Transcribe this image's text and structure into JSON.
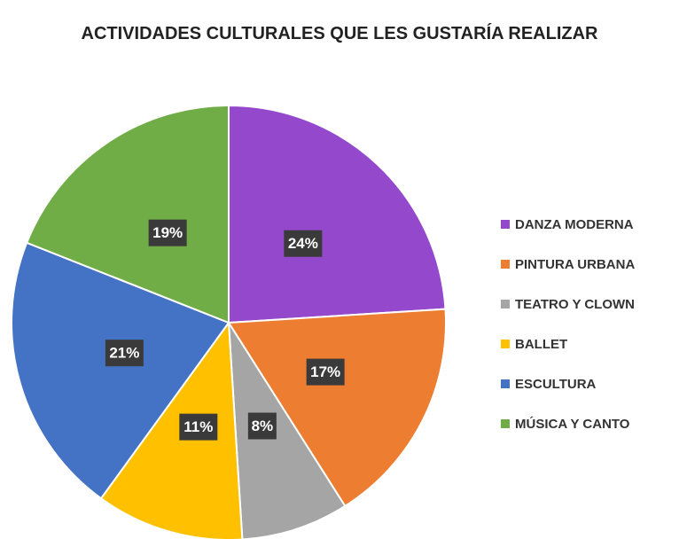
{
  "chart_data": {
    "type": "pie",
    "title": "ACTIVIDADES  CULTURALES QUE LES GUSTARÍA REALIZAR",
    "categories": [
      "DANZA MODERNA",
      "PINTURA URBANA",
      "TEATRO Y CLOWN",
      "BALLET",
      "ESCULTURA",
      "MÚSICA Y CANTO"
    ],
    "values": [
      24,
      17,
      8,
      11,
      21,
      19
    ],
    "value_labels": [
      "24%",
      "17%",
      "8%",
      "11%",
      "21%",
      "19%"
    ],
    "colors": [
      "#9449cc",
      "#ed7d31",
      "#a5a5a5",
      "#ffc000",
      "#4472c4",
      "#70ad47"
    ],
    "legend": "right"
  }
}
